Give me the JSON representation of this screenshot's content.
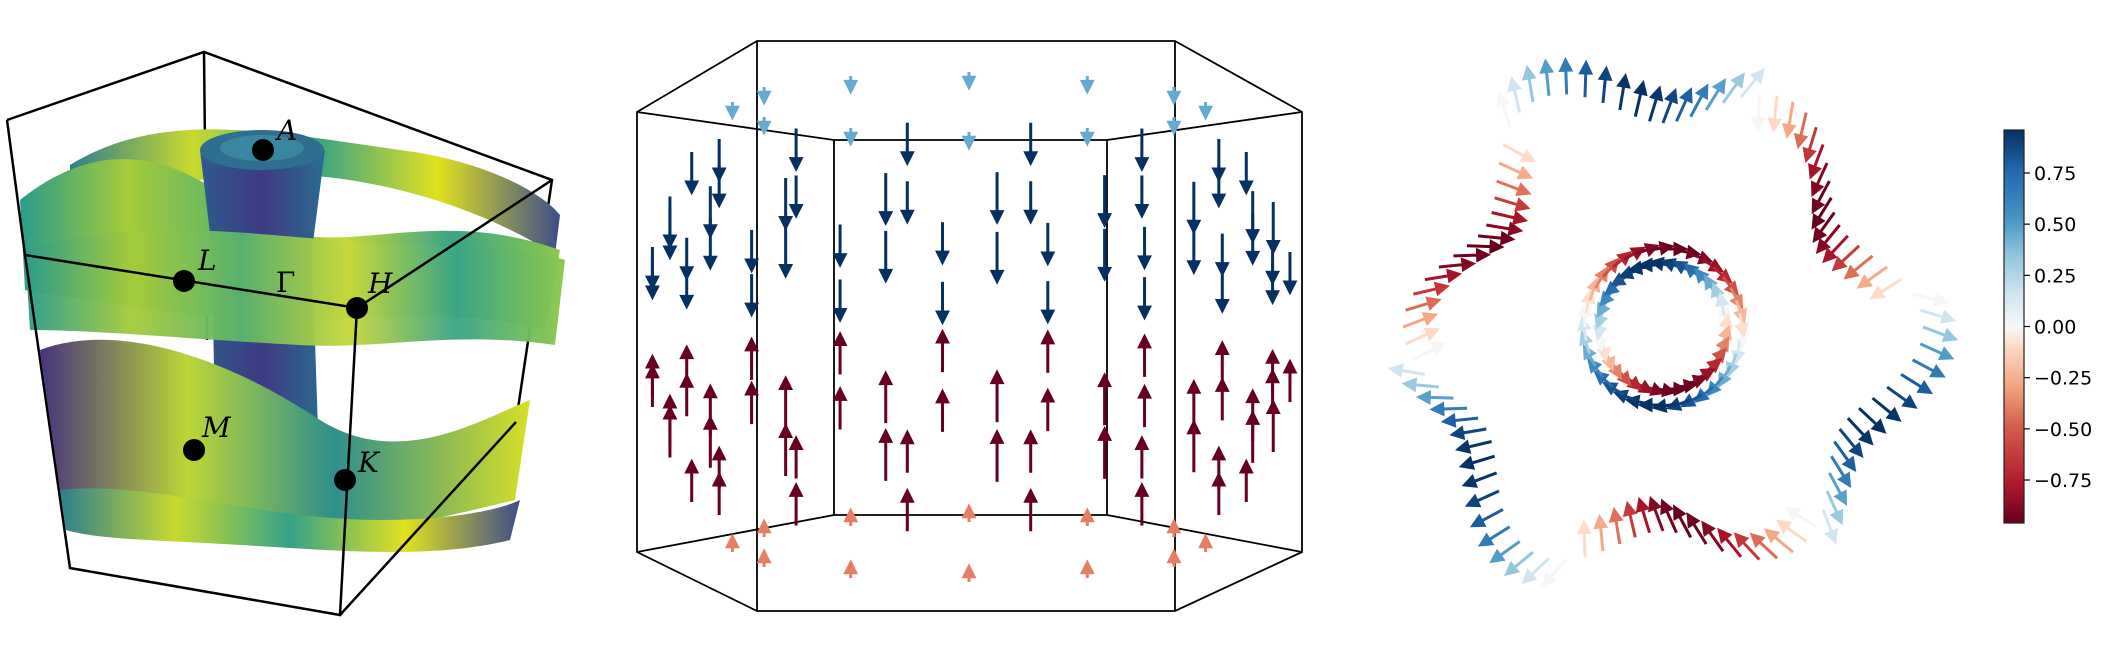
{
  "panels": {
    "fermi_surface": {
      "points": [
        {
          "label": "A"
        },
        {
          "label": "L"
        },
        {
          "label": "Γ"
        },
        {
          "label": "H"
        },
        {
          "label": "M"
        },
        {
          "label": "K"
        }
      ],
      "colormap": "viridis"
    },
    "spin_texture_3d": {
      "colormap": "RdBu"
    },
    "spin_texture_2d": {
      "colormap": "RdBu"
    }
  },
  "colorbar": {
    "range": [
      -0.96,
      0.96
    ],
    "ticks": [
      "0.75",
      "0.50",
      "0.25",
      "0.00",
      "−0.25",
      "−0.50",
      "−0.75"
    ],
    "tick_values": [
      0.75,
      0.5,
      0.25,
      0,
      -0.25,
      -0.5,
      -0.75
    ],
    "colors": [
      "#67001f",
      "#b2182b",
      "#d6604d",
      "#f4a582",
      "#fddbc7",
      "#f7f7f7",
      "#d1e5f0",
      "#92c5de",
      "#4393c3",
      "#2166ac",
      "#053061"
    ]
  }
}
